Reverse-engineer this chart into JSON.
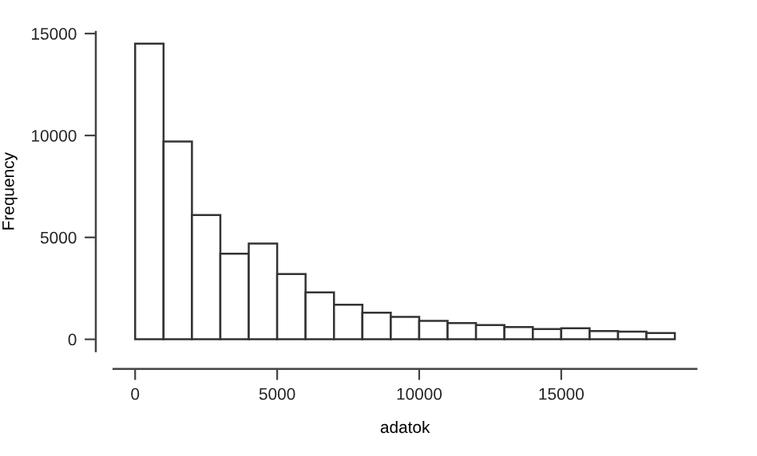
{
  "chart_data": {
    "type": "histogram",
    "xlabel": "adatok",
    "ylabel": "Frequency",
    "bins": [
      0,
      1000,
      2000,
      3000,
      4000,
      5000,
      6000,
      7000,
      8000,
      9000,
      10000,
      11000,
      12000,
      13000,
      14000,
      15000,
      16000,
      17000,
      18000,
      19000
    ],
    "values": [
      14500,
      9700,
      6100,
      4200,
      4700,
      3200,
      2300,
      1700,
      1300,
      1100,
      900,
      800,
      700,
      600,
      500,
      540,
      410,
      380,
      310
    ],
    "color": "#ffffff",
    "xlim": [
      -760,
      19760
    ],
    "ylim": [
      -580,
      15080
    ],
    "xticks": [
      0,
      5000,
      10000,
      15000
    ],
    "yticks": [
      0,
      5000,
      10000,
      15000
    ],
    "grid": false
  }
}
